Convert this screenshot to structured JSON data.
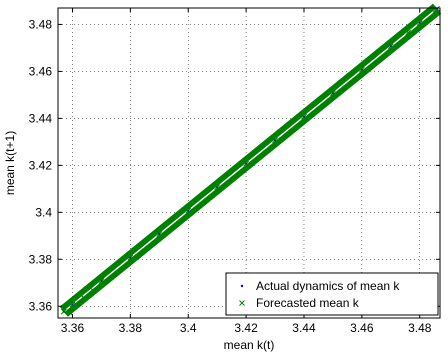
{
  "chart_data": {
    "type": "scatter",
    "title": "",
    "xlabel": "mean k(t)",
    "ylabel": "mean k(t+1)",
    "xlim": [
      3.355,
      3.487
    ],
    "ylim": [
      3.355,
      3.487
    ],
    "xticks": [
      "3.36",
      "3.38",
      "3.4",
      "3.42",
      "3.44",
      "3.46",
      "3.48"
    ],
    "yticks": [
      "3.36",
      "3.38",
      "3.4",
      "3.42",
      "3.44",
      "3.46",
      "3.48"
    ],
    "grid": true,
    "legend_position": "bottom-right",
    "series": [
      {
        "name": "Actual dynamics of mean k",
        "marker": "dot",
        "color": "#0000ff",
        "x": [
          3.357,
          3.36,
          3.37,
          3.38,
          3.39,
          3.4,
          3.41,
          3.42,
          3.43,
          3.44,
          3.45,
          3.46,
          3.47,
          3.48,
          3.486
        ],
        "y": [
          3.3577,
          3.3607,
          3.3707,
          3.3807,
          3.3907,
          3.4007,
          3.4107,
          3.4207,
          3.4307,
          3.4407,
          3.4507,
          3.4607,
          3.4707,
          3.4807,
          3.4867
        ]
      },
      {
        "name": "Forecasted mean k",
        "marker": "x",
        "color": "#008000",
        "x": [
          3.357,
          3.36,
          3.37,
          3.38,
          3.39,
          3.4,
          3.41,
          3.42,
          3.43,
          3.44,
          3.45,
          3.46,
          3.47,
          3.48,
          3.486
        ],
        "y": [
          3.3577,
          3.3607,
          3.3707,
          3.3807,
          3.3907,
          3.4007,
          3.4107,
          3.4207,
          3.4307,
          3.4407,
          3.4507,
          3.4607,
          3.4707,
          3.4807,
          3.4867
        ]
      }
    ]
  }
}
